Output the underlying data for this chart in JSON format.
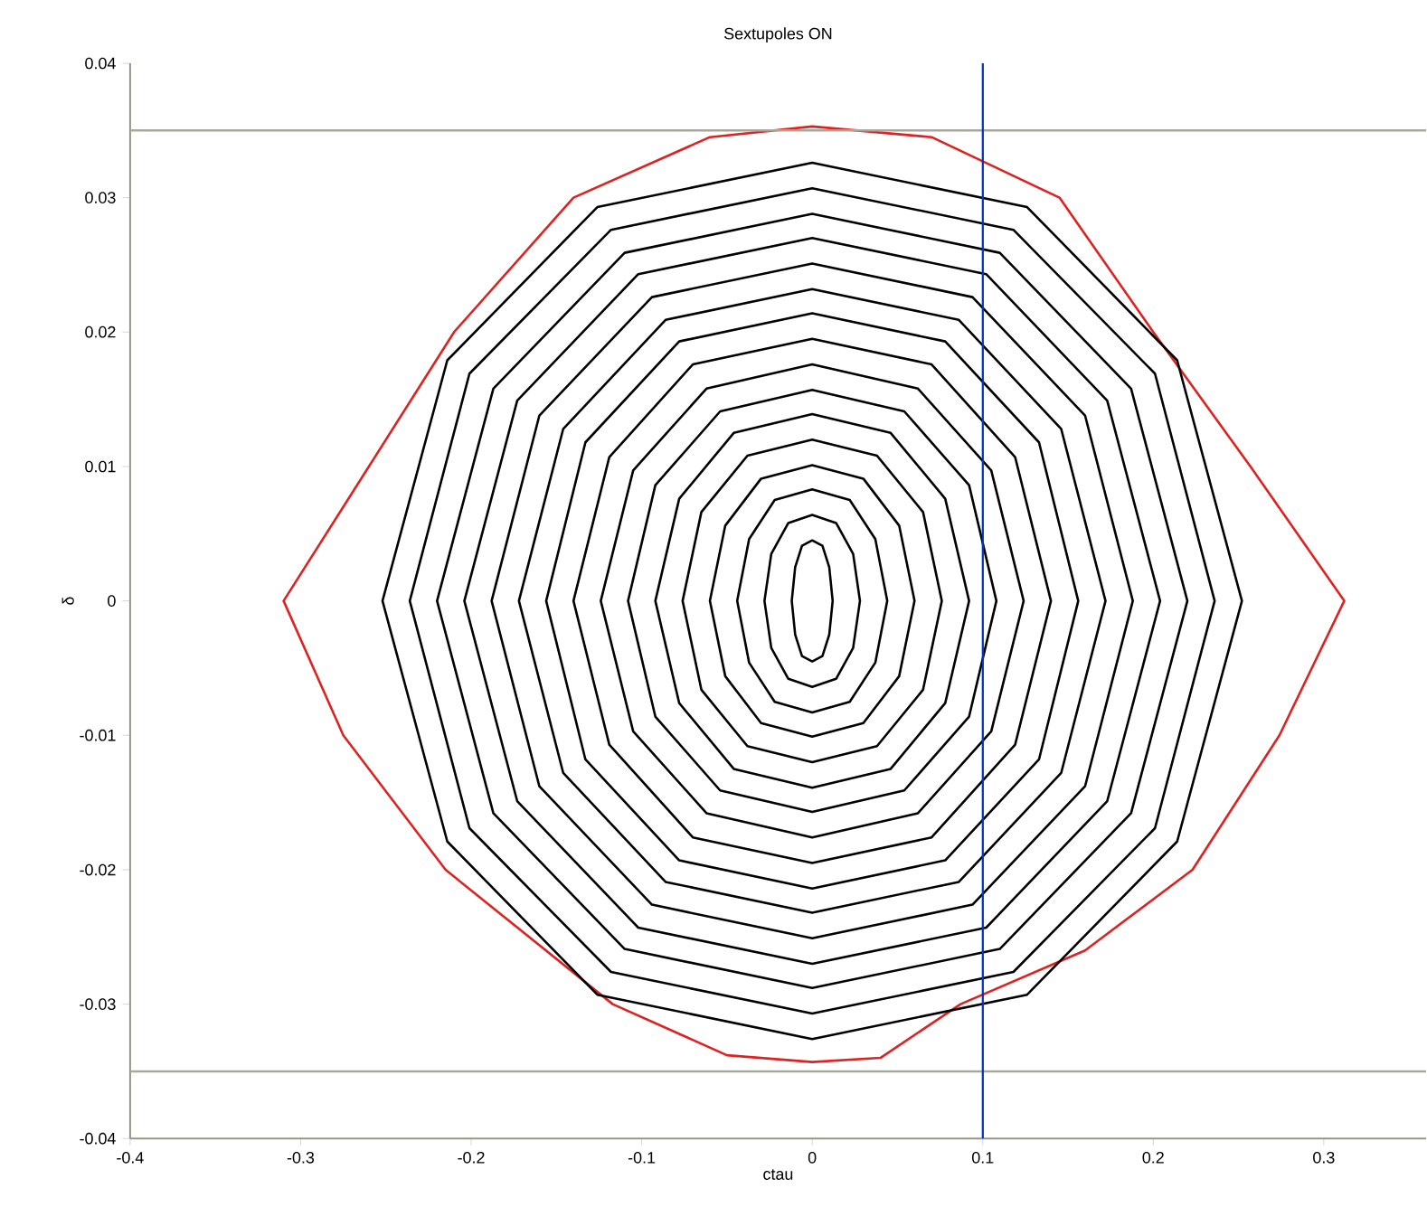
{
  "chart_data": {
    "type": "line",
    "title": "Sextupoles ON",
    "xlabel": "ctau",
    "ylabel": "δ",
    "xlim": [
      -0.4,
      0.36
    ],
    "ylim": [
      -0.04,
      0.04
    ],
    "xticks": [
      -0.4,
      -0.3,
      -0.2,
      -0.1,
      0,
      0.1,
      0.2,
      0.3
    ],
    "yticks": [
      -0.04,
      -0.03,
      -0.02,
      -0.01,
      0,
      0.01,
      0.02,
      0.03,
      0.04
    ],
    "grid": false,
    "marker": "none",
    "line_style": "solid",
    "ref_lines": [
      {
        "axis": "y",
        "value": 0.035,
        "color": "#a8a89a"
      },
      {
        "axis": "y",
        "value": -0.035,
        "color": "#a8a89a"
      },
      {
        "axis": "x",
        "value": 0.1,
        "color": "#0033cc"
      }
    ],
    "series": [
      {
        "color": "#dd2222",
        "x": [
          0.312,
          0.257,
          0.2,
          0.145,
          0.07,
          0,
          -0.06,
          -0.14,
          -0.21,
          -0.26,
          -0.31,
          -0.275,
          -0.215,
          -0.117,
          -0.05,
          0,
          0.04,
          0.087,
          0.16,
          0.223,
          0.274,
          0.312,
          0.257
        ],
        "values": [
          0,
          0.01,
          0.02,
          0.03,
          0.0345,
          0.0353,
          0.0345,
          0.03,
          0.02,
          0.01,
          0,
          -0.01,
          -0.02,
          -0.03,
          -0.0338,
          -0.0343,
          -0.034,
          -0.03,
          -0.026,
          -0.02,
          -0.01,
          0,
          0.01
        ]
      },
      {
        "color": "#000000",
        "x": [
          0.252,
          0.214,
          0.126,
          0,
          -0.126,
          -0.214,
          -0.252,
          -0.214,
          -0.126,
          0,
          0.126,
          0.214,
          0.252,
          0.214
        ],
        "values": [
          0,
          0.0179,
          0.0293,
          0.0326,
          0.0293,
          0.0179,
          0,
          -0.0179,
          -0.0293,
          -0.0326,
          -0.0293,
          -0.0179,
          0,
          0.0179
        ]
      },
      {
        "color": "#000000",
        "x": [
          0.236,
          0.201,
          0.118,
          0,
          -0.118,
          -0.201,
          -0.236,
          -0.201,
          -0.118,
          0,
          0.118,
          0.201,
          0.236,
          0.201
        ],
        "values": [
          0,
          0.0169,
          0.0276,
          0.0307,
          0.0276,
          0.0169,
          0,
          -0.0169,
          -0.0276,
          -0.0307,
          -0.0276,
          -0.0169,
          0,
          0.0169
        ]
      },
      {
        "color": "#000000",
        "x": [
          0.22,
          0.187,
          0.11,
          0,
          -0.11,
          -0.187,
          -0.22,
          -0.187,
          -0.11,
          0,
          0.11,
          0.187,
          0.22,
          0.187
        ],
        "values": [
          0,
          0.0158,
          0.0259,
          0.0288,
          0.0259,
          0.0158,
          0,
          -0.0158,
          -0.0259,
          -0.0288,
          -0.0259,
          -0.0158,
          0,
          0.0158
        ]
      },
      {
        "color": "#000000",
        "x": [
          0.204,
          0.173,
          0.102,
          0,
          -0.102,
          -0.173,
          -0.204,
          -0.173,
          -0.102,
          0,
          0.102,
          0.173,
          0.204,
          0.173
        ],
        "values": [
          0,
          0.0149,
          0.0243,
          0.027,
          0.0243,
          0.0149,
          0,
          -0.0149,
          -0.0243,
          -0.027,
          -0.0243,
          -0.0149,
          0,
          0.0149
        ]
      },
      {
        "color": "#000000",
        "x": [
          0.188,
          0.16,
          0.094,
          0,
          -0.094,
          -0.16,
          -0.188,
          -0.16,
          -0.094,
          0,
          0.094,
          0.16,
          0.188,
          0.16
        ],
        "values": [
          0,
          0.0138,
          0.0226,
          0.0251,
          0.0226,
          0.0138,
          0,
          -0.0138,
          -0.0226,
          -0.0251,
          -0.0226,
          -0.0138,
          0,
          0.0138
        ]
      },
      {
        "color": "#000000",
        "x": [
          0.172,
          0.146,
          0.086,
          0,
          -0.086,
          -0.146,
          -0.172,
          -0.146,
          -0.086,
          0,
          0.086,
          0.146,
          0.172,
          0.146
        ],
        "values": [
          0,
          0.0128,
          0.0209,
          0.0232,
          0.0209,
          0.0128,
          0,
          -0.0128,
          -0.0209,
          -0.0232,
          -0.0209,
          -0.0128,
          0,
          0.0128
        ]
      },
      {
        "color": "#000000",
        "x": [
          0.156,
          0.133,
          0.078,
          0,
          -0.078,
          -0.133,
          -0.156,
          -0.133,
          -0.078,
          0,
          0.078,
          0.133,
          0.156,
          0.133
        ],
        "values": [
          0,
          0.0118,
          0.0193,
          0.0214,
          0.0193,
          0.0118,
          0,
          -0.0118,
          -0.0193,
          -0.0214,
          -0.0193,
          -0.0118,
          0,
          0.0118
        ]
      },
      {
        "color": "#000000",
        "x": [
          0.14,
          0.119,
          0.07,
          0,
          -0.07,
          -0.119,
          -0.14,
          -0.119,
          -0.07,
          0,
          0.07,
          0.119,
          0.14,
          0.119
        ],
        "values": [
          0,
          0.0107,
          0.0176,
          0.0195,
          0.0176,
          0.0107,
          0,
          -0.0107,
          -0.0176,
          -0.0195,
          -0.0176,
          -0.0107,
          0,
          0.0107
        ]
      },
      {
        "color": "#000000",
        "x": [
          0.124,
          0.105,
          0.062,
          0,
          -0.062,
          -0.105,
          -0.124,
          -0.105,
          -0.062,
          0,
          0.062,
          0.105,
          0.124,
          0.105
        ],
        "values": [
          0,
          0.0097,
          0.0158,
          0.0176,
          0.0158,
          0.0097,
          0,
          -0.0097,
          -0.0158,
          -0.0176,
          -0.0158,
          -0.0097,
          0,
          0.0097
        ]
      },
      {
        "color": "#000000",
        "x": [
          0.108,
          0.092,
          0.054,
          0,
          -0.054,
          -0.092,
          -0.108,
          -0.092,
          -0.054,
          0,
          0.054,
          0.092,
          0.108,
          0.092
        ],
        "values": [
          0,
          0.0086,
          0.0141,
          0.0157,
          0.0141,
          0.0086,
          0,
          -0.0086,
          -0.0141,
          -0.0157,
          -0.0141,
          -0.0086,
          0,
          0.0086
        ]
      },
      {
        "color": "#000000",
        "x": [
          0.092,
          0.078,
          0.046,
          0,
          -0.046,
          -0.078,
          -0.092,
          -0.078,
          -0.046,
          0,
          0.046,
          0.078,
          0.092,
          0.078
        ],
        "values": [
          0,
          0.0076,
          0.0125,
          0.0139,
          0.0125,
          0.0076,
          0,
          -0.0076,
          -0.0125,
          -0.0139,
          -0.0125,
          -0.0076,
          0,
          0.0076
        ]
      },
      {
        "color": "#000000",
        "x": [
          0.076,
          0.065,
          0.038,
          0,
          -0.038,
          -0.065,
          -0.076,
          -0.065,
          -0.038,
          0,
          0.038,
          0.065,
          0.076,
          0.065
        ],
        "values": [
          0,
          0.0066,
          0.0108,
          0.012,
          0.0108,
          0.0066,
          0,
          -0.0066,
          -0.0108,
          -0.012,
          -0.0108,
          -0.0066,
          0,
          0.0066
        ]
      },
      {
        "color": "#000000",
        "x": [
          0.06,
          0.051,
          0.03,
          0,
          -0.03,
          -0.051,
          -0.06,
          -0.051,
          -0.03,
          0,
          0.03,
          0.051,
          0.06,
          0.051
        ],
        "values": [
          0,
          0.0056,
          0.0091,
          0.0101,
          0.0091,
          0.0056,
          0,
          -0.0056,
          -0.0091,
          -0.0101,
          -0.0091,
          -0.0056,
          0,
          0.0056
        ]
      },
      {
        "color": "#000000",
        "x": [
          0.044,
          0.037,
          0.022,
          0,
          -0.022,
          -0.037,
          -0.044,
          -0.037,
          -0.022,
          0,
          0.022,
          0.037,
          0.044,
          0.037
        ],
        "values": [
          0,
          0.0046,
          0.0075,
          0.0083,
          0.0075,
          0.0046,
          0,
          -0.0046,
          -0.0075,
          -0.0083,
          -0.0075,
          -0.0046,
          0,
          0.0046
        ]
      },
      {
        "color": "#000000",
        "x": [
          0.028,
          0.024,
          0.014,
          0,
          -0.014,
          -0.024,
          -0.028,
          -0.024,
          -0.014,
          0,
          0.014,
          0.024,
          0.028,
          0.024
        ],
        "values": [
          0,
          0.0035,
          0.0058,
          0.0064,
          0.0058,
          0.0035,
          0,
          -0.0035,
          -0.0058,
          -0.0064,
          -0.0058,
          -0.0035,
          0,
          0.0035
        ]
      },
      {
        "color": "#000000",
        "x": [
          0.012,
          0.01,
          0.006,
          0,
          -0.006,
          -0.01,
          -0.012,
          -0.01,
          -0.006,
          0,
          0.006,
          0.01,
          0.012,
          0.01
        ],
        "values": [
          0,
          0.0025,
          0.0041,
          0.0045,
          0.0041,
          0.0025,
          0,
          -0.0025,
          -0.0041,
          -0.0045,
          -0.0041,
          -0.0025,
          0,
          0.0025
        ]
      }
    ]
  }
}
